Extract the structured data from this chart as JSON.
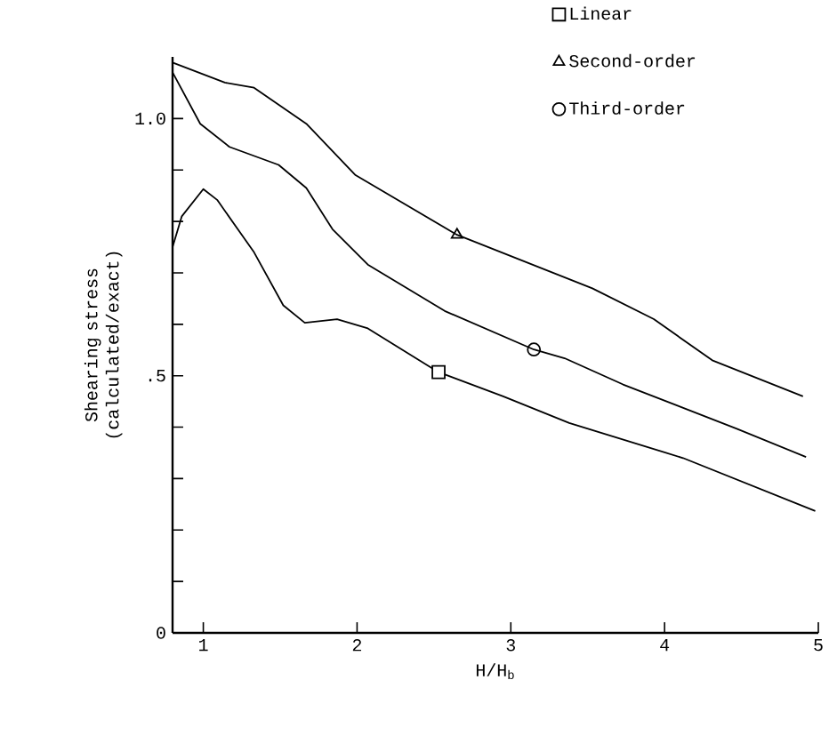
{
  "chart_data": {
    "type": "line",
    "xlabel": "H/H$_{b}$",
    "ylabel": "Shearing stress (calculated/exact)",
    "xlim": [
      0.8,
      5
    ],
    "ylim": [
      0,
      1.12
    ],
    "xticks": [
      1,
      2,
      3,
      4,
      5
    ],
    "yticks": [
      0,
      {
        "value": 0.1,
        "label": null
      },
      {
        "value": 0.2,
        "label": null
      },
      {
        "value": 0.3,
        "label": null
      },
      {
        "value": 0.4,
        "label": null
      },
      {
        "value": 0.5,
        "label": ".5"
      },
      {
        "value": 0.6,
        "label": null
      },
      {
        "value": 0.7,
        "label": null
      },
      {
        "value": 0.8,
        "label": null
      },
      {
        "value": 0.9,
        "label": null
      },
      {
        "value": 1.0,
        "label": "1.0"
      }
    ],
    "legend": "top right",
    "grid": false,
    "series": [
      {
        "color": "#000000",
        "x": [
          0.8,
          0.86,
          1.0,
          1.09,
          1.33,
          1.52,
          1.66,
          1.87,
          2.07,
          2.53,
          2.95,
          3.38,
          4.12,
          4.98
        ],
        "values": [
          0.75,
          0.81,
          0.863,
          0.842,
          0.74,
          0.637,
          0.603,
          0.61,
          0.592,
          0.507,
          0.46,
          0.408,
          0.34,
          0.237
        ]
      },
      {
        "color": "#000000",
        "x": [
          0.8,
          1.14,
          1.33,
          1.67,
          1.99,
          2.65,
          3.53,
          3.93,
          4.31,
          4.9
        ],
        "values": [
          1.109,
          1.07,
          1.06,
          0.99,
          0.89,
          0.774,
          0.67,
          0.61,
          0.53,
          0.46
        ]
      },
      {
        "color": "#000000",
        "x": [
          0.8,
          0.98,
          1.17,
          1.49,
          1.67,
          1.84,
          2.07,
          2.57,
          3.15,
          3.35,
          3.73,
          4.47,
          4.92
        ],
        "values": [
          1.09,
          0.99,
          0.945,
          0.91,
          0.865,
          0.785,
          0.716,
          0.626,
          0.551,
          0.534,
          0.483,
          0.397,
          0.342
        ]
      },
      {
        "type": "scatter",
        "name": "Linear",
        "marker": "square",
        "color": "#000000",
        "x": [
          2.53
        ],
        "values": [
          0.507
        ]
      },
      {
        "type": "scatter",
        "name": "Second-order",
        "marker": "triangle",
        "color": "#000000",
        "x": [
          2.65
        ],
        "values": [
          0.774
        ]
      },
      {
        "type": "scatter",
        "name": "Third-order",
        "marker": "circle",
        "color": "#000000",
        "x": [
          3.15
        ],
        "values": [
          0.551
        ]
      }
    ]
  }
}
